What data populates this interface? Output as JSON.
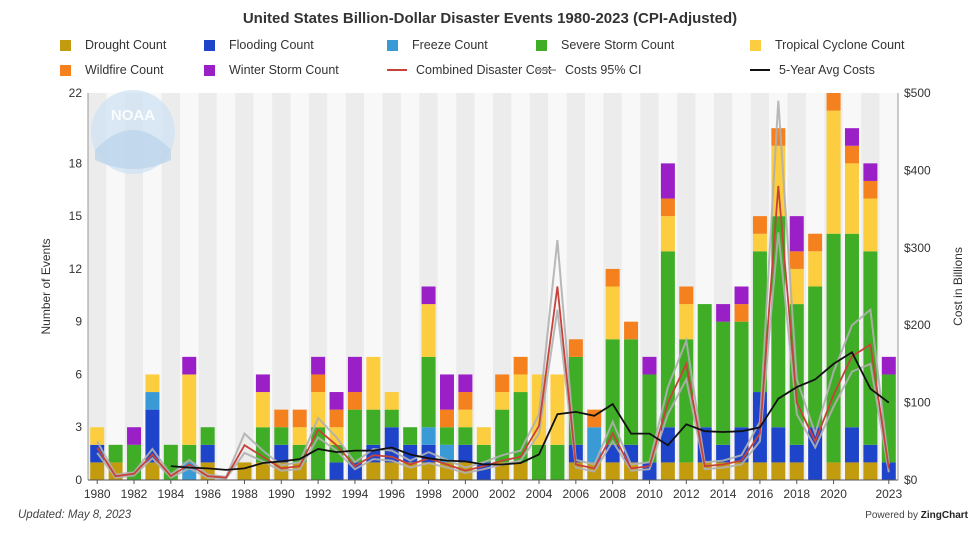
{
  "chart_data": {
    "type": "bar",
    "title": "United States Billion-Dollar Disaster Events 1980-2023 (CPI-Adjusted)",
    "ylabel": "Number of Events",
    "y2label": "Cost in Billions",
    "ylim": [
      0,
      22
    ],
    "y2lim": [
      0,
      500
    ],
    "yticks": [
      "0",
      "3",
      "6",
      "9",
      "12",
      "15",
      "18",
      "22"
    ],
    "yticks_values": [
      0,
      3,
      6,
      9,
      12,
      15,
      18,
      22
    ],
    "y2ticks": [
      "$0",
      "$100",
      "$200",
      "$300",
      "$400",
      "$500"
    ],
    "y2ticks_values": [
      0,
      100,
      200,
      300,
      400,
      500
    ],
    "xtick_labels": [
      "1980",
      "1982",
      "1984",
      "1986",
      "1988",
      "1990",
      "1992",
      "1994",
      "1996",
      "1998",
      "2000",
      "2002",
      "2004",
      "2006",
      "2008",
      "2010",
      "2012",
      "2014",
      "2016",
      "2018",
      "2020",
      "2023"
    ],
    "years": [
      1980,
      1981,
      1982,
      1983,
      1984,
      1985,
      1986,
      1987,
      1988,
      1989,
      1990,
      1991,
      1992,
      1993,
      1994,
      1995,
      1996,
      1997,
      1998,
      1999,
      2000,
      2001,
      2002,
      2003,
      2004,
      2005,
      2006,
      2007,
      2008,
      2009,
      2010,
      2011,
      2012,
      2013,
      2014,
      2015,
      2016,
      2017,
      2018,
      2019,
      2020,
      2021,
      2022,
      2023
    ],
    "stack_series": [
      {
        "name": "Drought Count",
        "color": "#c39b0f",
        "values": [
          1,
          1,
          0,
          1,
          0,
          0,
          1,
          0,
          1,
          1,
          1,
          1,
          0,
          0,
          0,
          1,
          1,
          1,
          1,
          1,
          1,
          0,
          1,
          1,
          0,
          0,
          1,
          1,
          1,
          1,
          0,
          1,
          1,
          1,
          1,
          1,
          1,
          1,
          1,
          0,
          1,
          1,
          1,
          0
        ]
      },
      {
        "name": "Flooding Count",
        "color": "#1e45c9",
        "values": [
          1,
          0,
          0,
          3,
          0,
          0,
          1,
          0,
          0,
          0,
          1,
          0,
          0,
          1,
          1,
          1,
          2,
          1,
          1,
          0,
          1,
          1,
          0,
          0,
          0,
          0,
          1,
          0,
          1,
          1,
          1,
          2,
          0,
          2,
          1,
          2,
          4,
          2,
          1,
          3,
          0,
          2,
          1,
          1
        ]
      },
      {
        "name": "Freeze Count",
        "color": "#3a9ad6",
        "values": [
          0,
          0,
          0,
          1,
          0,
          1,
          0,
          0,
          0,
          0,
          0,
          0,
          0,
          0,
          0,
          0,
          0,
          0,
          1,
          1,
          0,
          0,
          0,
          0,
          0,
          0,
          0,
          2,
          0,
          0,
          0,
          0,
          0,
          0,
          0,
          0,
          0,
          0,
          0,
          0,
          0,
          0,
          0,
          0
        ]
      },
      {
        "name": "Severe Storm Count",
        "color": "#3fad26",
        "values": [
          0,
          1,
          2,
          0,
          2,
          1,
          1,
          0,
          0,
          2,
          1,
          1,
          3,
          1,
          3,
          2,
          1,
          1,
          4,
          1,
          1,
          1,
          3,
          4,
          2,
          2,
          5,
          0,
          6,
          6,
          5,
          10,
          7,
          7,
          7,
          6,
          8,
          12,
          8,
          8,
          13,
          11,
          11,
          5
        ]
      },
      {
        "name": "Tropical Cyclone Count",
        "color": "#fbcd3f",
        "values": [
          1,
          0,
          0,
          1,
          0,
          4,
          0,
          0,
          0,
          2,
          0,
          1,
          2,
          1,
          0,
          3,
          1,
          0,
          3,
          0,
          1,
          1,
          1,
          1,
          4,
          4,
          0,
          0,
          3,
          0,
          0,
          2,
          2,
          0,
          0,
          0,
          1,
          4,
          2,
          2,
          7,
          4,
          3,
          0
        ]
      },
      {
        "name": "Wildfire Count",
        "color": "#f5801e",
        "values": [
          0,
          0,
          0,
          0,
          0,
          0,
          0,
          0,
          0,
          0,
          1,
          1,
          1,
          1,
          1,
          0,
          0,
          0,
          0,
          1,
          1,
          0,
          1,
          1,
          0,
          0,
          1,
          1,
          1,
          1,
          0,
          1,
          1,
          0,
          0,
          1,
          1,
          1,
          1,
          1,
          1,
          1,
          1,
          0
        ]
      },
      {
        "name": "Winter Storm Count",
        "color": "#9a1fc7",
        "values": [
          0,
          0,
          1,
          0,
          0,
          1,
          0,
          0,
          0,
          1,
          0,
          0,
          1,
          1,
          2,
          0,
          0,
          0,
          1,
          2,
          1,
          0,
          0,
          0,
          0,
          0,
          0,
          0,
          0,
          0,
          1,
          2,
          0,
          0,
          1,
          1,
          0,
          0,
          2,
          0,
          0,
          1,
          1,
          1
        ]
      }
    ],
    "line_series": [
      {
        "name": "Combined Disaster Cost",
        "color": "#c8423c",
        "values": [
          42,
          5,
          8,
          33,
          5,
          20,
          5,
          3,
          45,
          30,
          15,
          18,
          65,
          45,
          18,
          32,
          30,
          20,
          28,
          20,
          12,
          18,
          25,
          30,
          70,
          250,
          20,
          15,
          60,
          15,
          18,
          100,
          150,
          18,
          20,
          25,
          60,
          380,
          100,
          50,
          110,
          160,
          175,
          15
        ]
      },
      {
        "name": "Costs 95% CI",
        "color": "#b0b0b0",
        "values_low": [
          35,
          3,
          6,
          28,
          3,
          15,
          3,
          2,
          35,
          24,
          12,
          14,
          55,
          38,
          14,
          27,
          25,
          16,
          22,
          16,
          9,
          14,
          20,
          25,
          60,
          220,
          16,
          11,
          50,
          12,
          14,
          85,
          130,
          14,
          16,
          20,
          50,
          320,
          85,
          42,
          95,
          140,
          150,
          10
        ],
        "values_high": [
          50,
          7,
          10,
          40,
          7,
          26,
          7,
          4,
          60,
          38,
          19,
          23,
          80,
          55,
          23,
          40,
          38,
          25,
          36,
          26,
          16,
          23,
          32,
          38,
          85,
          310,
          26,
          20,
          75,
          20,
          23,
          120,
          180,
          23,
          25,
          32,
          75,
          490,
          130,
          60,
          140,
          200,
          220,
          20
        ]
      },
      {
        "name": "5-Year Avg Costs",
        "color": "#111111",
        "values": [
          null,
          null,
          null,
          null,
          18,
          16,
          15,
          13,
          15,
          22,
          24,
          27,
          40,
          36,
          38,
          38,
          42,
          33,
          28,
          25,
          24,
          20,
          20,
          22,
          33,
          85,
          88,
          83,
          98,
          60,
          60,
          45,
          72,
          63,
          62,
          63,
          68,
          105,
          120,
          130,
          150,
          165,
          118,
          100
        ]
      }
    ],
    "legend": [
      "Drought Count",
      "Flooding Count",
      "Freeze Count",
      "Severe Storm Count",
      "Tropical Cyclone Count",
      "Wildfire Count",
      "Winter Storm Count",
      "Combined Disaster Cost",
      "Costs 95% CI",
      "5-Year Avg Costs"
    ],
    "legend_colors": [
      "#c39b0f",
      "#1e45c9",
      "#3a9ad6",
      "#3fad26",
      "#fbcd3f",
      "#f5801e",
      "#9a1fc7",
      "#c8423c",
      "#b0b0b0",
      "#111111"
    ],
    "watermark_text": "NOAA"
  },
  "footer": {
    "updated": "Updated: May 8, 2023",
    "powered_prefix": "Powered by",
    "powered_brand": "ZingChart"
  }
}
